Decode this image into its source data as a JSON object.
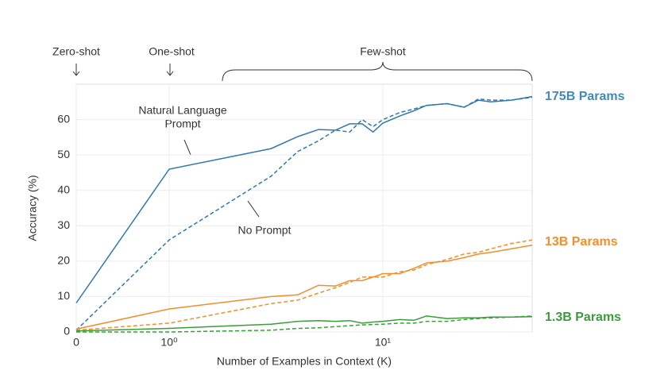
{
  "chart_data": {
    "type": "line",
    "xlabel": "Number of Examples in Context  (K)",
    "ylabel": "Accuracy (%)",
    "xscale": "symlog",
    "x": [
      0,
      1,
      3,
      4,
      5,
      6,
      7,
      8,
      9,
      10,
      12,
      14,
      16,
      20,
      24,
      28,
      32,
      40,
      50
    ],
    "xlim": [
      0,
      50
    ],
    "xticks": [
      0,
      {
        "value": 1,
        "label": "10⁰"
      },
      {
        "value": 10,
        "label": "10¹"
      }
    ],
    "ylim": [
      0,
      70
    ],
    "yticks": [
      0,
      10,
      20,
      30,
      40,
      50,
      60
    ],
    "grid": true,
    "series": [
      {
        "color": "#2f77b0",
        "style": "solid",
        "values": [
          8.2,
          46,
          51.8,
          55.2,
          57.2,
          57,
          58.8,
          58.8,
          56.5,
          59,
          61,
          62.5,
          64,
          64.5,
          63.5,
          65.5,
          65,
          65.5,
          66.5
        ]
      },
      {
        "color": "#2f77b0",
        "style": "dashed",
        "values": [
          0.5,
          26,
          44,
          51,
          54,
          57,
          56.5,
          60,
          58,
          60,
          62,
          63,
          64,
          64.5,
          63.5,
          65.8,
          65.5,
          65.5,
          66.3
        ]
      },
      {
        "color": "#f28e2b",
        "style": "solid",
        "values": [
          0.8,
          6.5,
          10,
          10.5,
          13.2,
          13,
          14.5,
          14.5,
          15.5,
          16.5,
          16.5,
          18,
          19.5,
          20,
          21,
          22,
          22.5,
          23.5,
          24.5
        ]
      },
      {
        "color": "#f28e2b",
        "style": "dashed",
        "values": [
          0.5,
          2.5,
          8,
          9,
          11,
          12.5,
          14,
          15.5,
          15.5,
          15.5,
          17,
          17.5,
          19,
          20.5,
          22,
          22.5,
          23.5,
          25,
          26
        ]
      },
      {
        "color": "#3a9d3a",
        "style": "solid",
        "values": [
          0.3,
          1,
          2.2,
          3,
          3.2,
          3,
          3.2,
          2.5,
          2.8,
          3,
          3.5,
          3.3,
          4.5,
          3.8,
          4,
          4,
          4.2,
          4.2,
          4.3
        ]
      },
      {
        "color": "#3a9d3a",
        "style": "dashed",
        "values": [
          0,
          0,
          0.5,
          1,
          1.2,
          1.5,
          1.8,
          2,
          2.1,
          2.2,
          2.5,
          2.5,
          3,
          3,
          3.5,
          3.8,
          4,
          4.2,
          4.5
        ]
      }
    ],
    "annotations": {
      "zero_shot": "Zero-shot",
      "one_shot": "One-shot",
      "few_shot": "Few-shot",
      "natural_language_prompt": [
        "Natural Language",
        "Prompt"
      ],
      "no_prompt": "No Prompt",
      "params_175b": "175B Params",
      "params_13b": "13B Params",
      "params_1_3b": "1.3B Params"
    }
  }
}
